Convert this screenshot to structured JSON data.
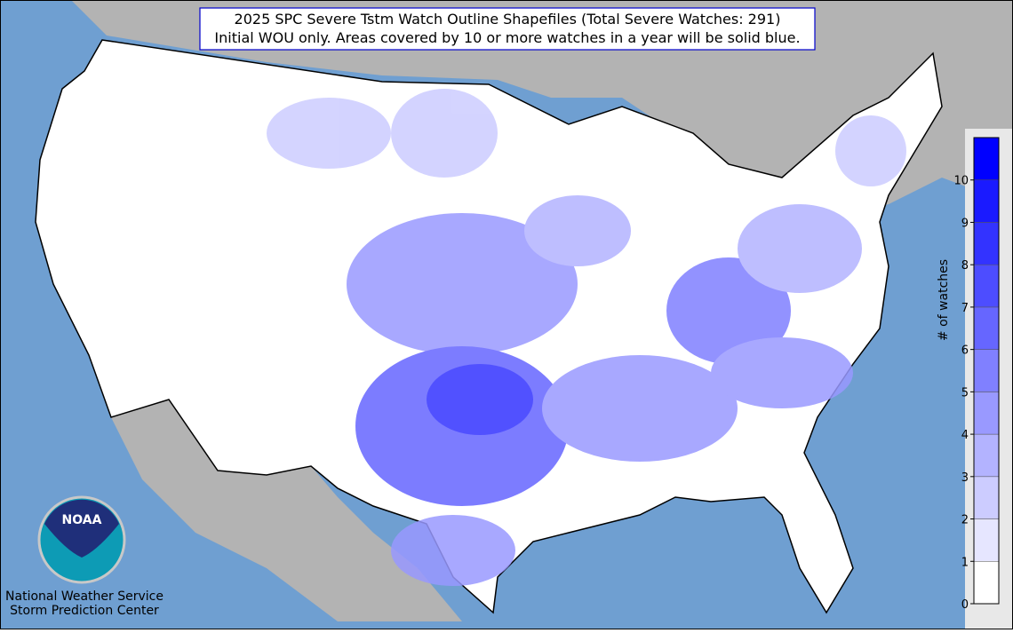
{
  "title_box": {
    "line1": "2025 SPC Severe Tstm Watch Outline Shapefiles (Total Severe Watches: 291)",
    "line2": "Initial WOU only. Areas covered by 10 or more watches in a year will be solid blue."
  },
  "colorbar": {
    "label": "# of watches",
    "ticks": [
      0,
      1,
      2,
      3,
      4,
      5,
      6,
      7,
      8,
      9,
      10
    ],
    "colors": [
      "#ffffff",
      "#e6e6ff",
      "#ccccff",
      "#b3b3ff",
      "#9999ff",
      "#8080ff",
      "#6666ff",
      "#4d4dff",
      "#3333ff",
      "#1a1aff",
      "#0000ff"
    ]
  },
  "logo": {
    "text": "NOAA"
  },
  "credit": {
    "line1": "National Weather Service",
    "line2": "Storm Prediction Center"
  }
}
